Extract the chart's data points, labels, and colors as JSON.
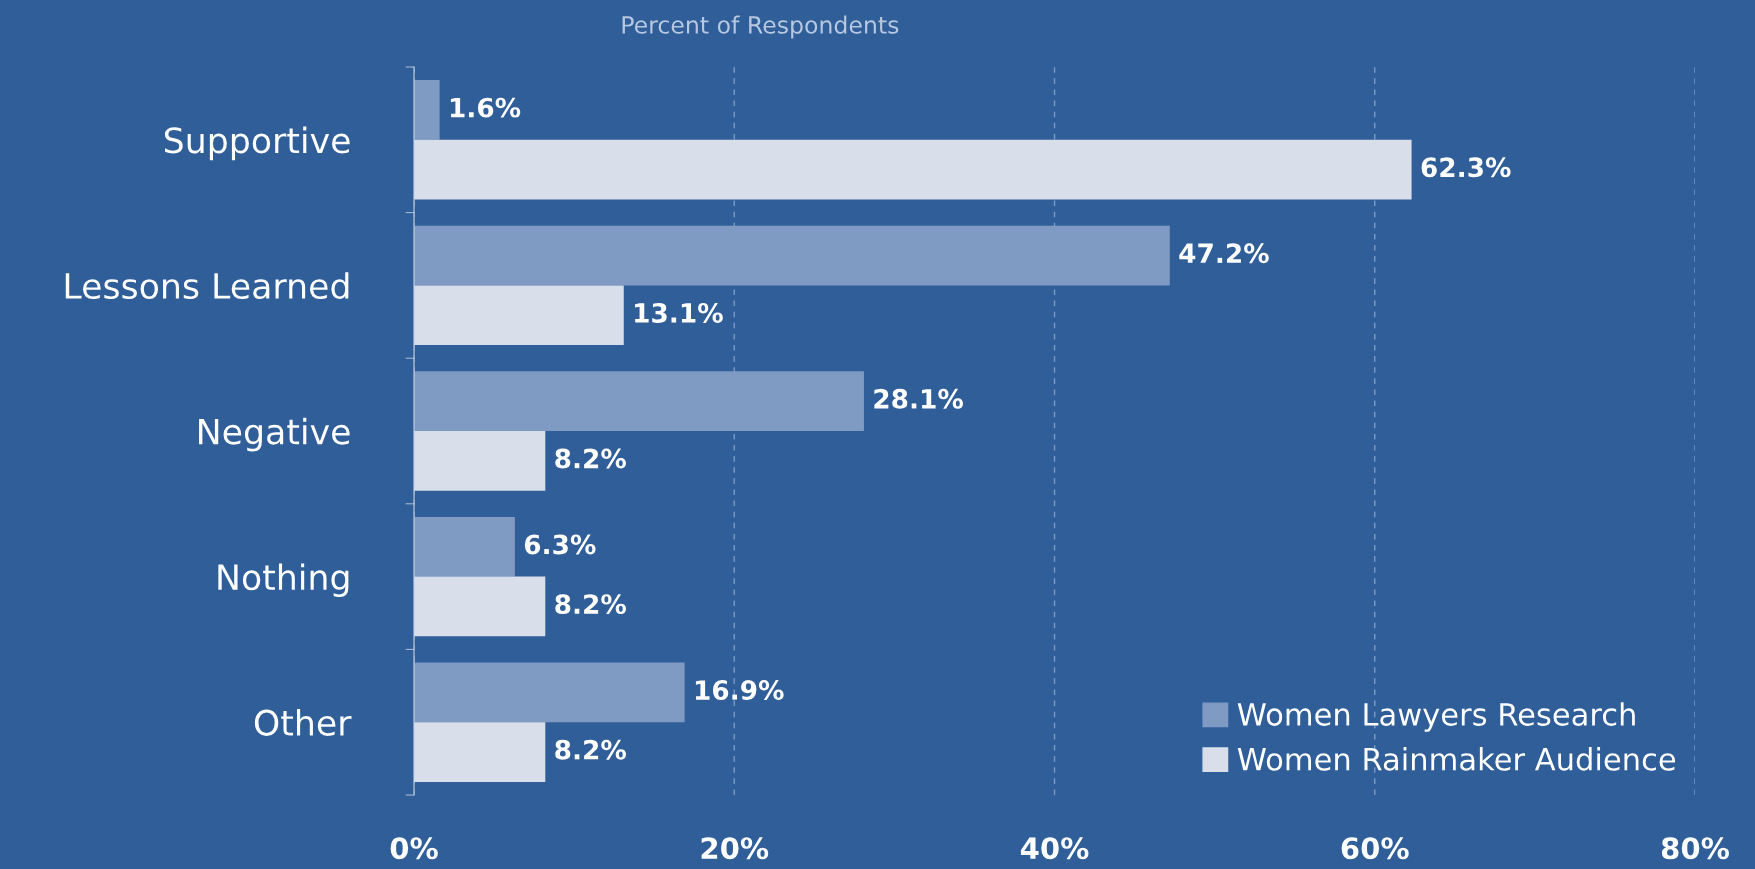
{
  "chart_data": {
    "type": "bar",
    "orientation": "horizontal",
    "title": "Percent of Respondents",
    "categories": [
      "Supportive",
      "Lessons Learned",
      "Negative",
      "Nothing",
      "Other"
    ],
    "series": [
      {
        "name": "Women Lawyers Research",
        "color": "#7f9ac3",
        "values": [
          1.6,
          47.2,
          28.1,
          6.3,
          16.9
        ],
        "value_labels": [
          "1.6%",
          "47.2%",
          "28.1%",
          "6.3%",
          "16.9%"
        ]
      },
      {
        "name": "Women Rainmaker Audience",
        "color": "#d8dfeb",
        "values": [
          62.3,
          13.1,
          8.2,
          8.2,
          8.2
        ],
        "value_labels": [
          "62.3%",
          "13.1%",
          "8.2%",
          "8.2%",
          "8.2%"
        ]
      }
    ],
    "xlim": [
      0,
      80
    ],
    "xticks": [
      {
        "value": 0,
        "label": "0%"
      },
      {
        "value": 20,
        "label": "20%"
      },
      {
        "value": 40,
        "label": "40%"
      },
      {
        "value": 60,
        "label": "60%"
      },
      {
        "value": 80,
        "label": "80%"
      }
    ],
    "grid": "x",
    "legend": "bottom right"
  }
}
